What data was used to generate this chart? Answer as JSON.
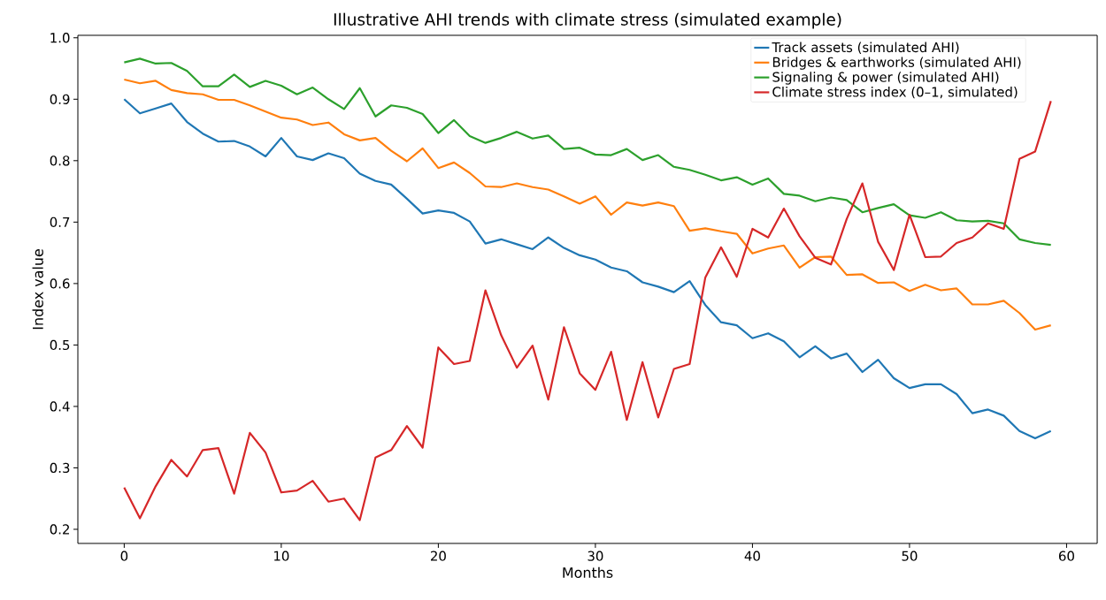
{
  "chart_data": {
    "type": "line",
    "title": "Illustrative AHI trends with climate stress (simulated example)",
    "xlabel": "Months",
    "ylabel": "Index value",
    "x": [
      0,
      1,
      2,
      3,
      4,
      5,
      6,
      7,
      8,
      9,
      10,
      11,
      12,
      13,
      14,
      15,
      16,
      17,
      18,
      19,
      20,
      21,
      22,
      23,
      24,
      25,
      26,
      27,
      28,
      29,
      30,
      31,
      32,
      33,
      34,
      35,
      36,
      37,
      38,
      39,
      40,
      41,
      42,
      43,
      44,
      45,
      46,
      47,
      48,
      49,
      50,
      51,
      52,
      53,
      54,
      55,
      56,
      57,
      58,
      59
    ],
    "series": [
      {
        "name": "Track assets (simulated AHI)",
        "color": "#1f77b4",
        "values": [
          0.9,
          0.877,
          0.885,
          0.893,
          0.863,
          0.844,
          0.831,
          0.832,
          0.823,
          0.807,
          0.837,
          0.807,
          0.801,
          0.812,
          0.804,
          0.779,
          0.767,
          0.761,
          0.738,
          0.714,
          0.719,
          0.715,
          0.701,
          0.665,
          0.672,
          0.664,
          0.656,
          0.675,
          0.658,
          0.646,
          0.639,
          0.626,
          0.62,
          0.602,
          0.595,
          0.586,
          0.604,
          0.565,
          0.537,
          0.532,
          0.511,
          0.519,
          0.506,
          0.48,
          0.498,
          0.478,
          0.486,
          0.456,
          0.476,
          0.446,
          0.43,
          0.436,
          0.436,
          0.42,
          0.389,
          0.395,
          0.385,
          0.36,
          0.348,
          0.36
        ]
      },
      {
        "name": "Bridges & earthworks (simulated AHI)",
        "color": "#ff7f0e",
        "values": [
          0.932,
          0.926,
          0.93,
          0.915,
          0.91,
          0.908,
          0.899,
          0.899,
          0.89,
          0.88,
          0.87,
          0.867,
          0.858,
          0.862,
          0.843,
          0.833,
          0.837,
          0.816,
          0.799,
          0.82,
          0.788,
          0.797,
          0.78,
          0.758,
          0.757,
          0.763,
          0.757,
          0.753,
          0.742,
          0.73,
          0.742,
          0.712,
          0.732,
          0.727,
          0.732,
          0.726,
          0.686,
          0.69,
          0.685,
          0.681,
          0.649,
          0.657,
          0.662,
          0.626,
          0.643,
          0.644,
          0.614,
          0.615,
          0.601,
          0.602,
          0.588,
          0.598,
          0.589,
          0.592,
          0.566,
          0.566,
          0.572,
          0.552,
          0.525,
          0.532
        ]
      },
      {
        "name": "Signaling & power (simulated AHI)",
        "color": "#2ca02c",
        "values": [
          0.96,
          0.966,
          0.958,
          0.959,
          0.946,
          0.921,
          0.921,
          0.94,
          0.92,
          0.93,
          0.922,
          0.908,
          0.919,
          0.9,
          0.884,
          0.918,
          0.872,
          0.89,
          0.886,
          0.876,
          0.845,
          0.866,
          0.84,
          0.829,
          0.837,
          0.847,
          0.836,
          0.841,
          0.819,
          0.821,
          0.81,
          0.809,
          0.819,
          0.801,
          0.809,
          0.79,
          0.785,
          0.777,
          0.768,
          0.773,
          0.761,
          0.771,
          0.746,
          0.743,
          0.734,
          0.74,
          0.736,
          0.716,
          0.723,
          0.729,
          0.711,
          0.707,
          0.716,
          0.703,
          0.701,
          0.702,
          0.698,
          0.672,
          0.666,
          0.663
        ]
      },
      {
        "name": "Climate stress index (0–1, simulated)",
        "color": "#d62728",
        "values": [
          0.268,
          0.218,
          0.27,
          0.313,
          0.286,
          0.329,
          0.332,
          0.258,
          0.357,
          0.325,
          0.26,
          0.263,
          0.279,
          0.245,
          0.25,
          0.215,
          0.317,
          0.329,
          0.368,
          0.333,
          0.496,
          0.469,
          0.474,
          0.589,
          0.516,
          0.463,
          0.499,
          0.411,
          0.529,
          0.454,
          0.427,
          0.489,
          0.378,
          0.472,
          0.382,
          0.461,
          0.469,
          0.61,
          0.659,
          0.611,
          0.689,
          0.675,
          0.722,
          0.677,
          0.642,
          0.631,
          0.705,
          0.763,
          0.668,
          0.622,
          0.712,
          0.643,
          0.644,
          0.666,
          0.675,
          0.698,
          0.689,
          0.803,
          0.815,
          0.897
        ]
      }
    ],
    "xlim": [
      -2.95,
      61.95
    ],
    "ylim": [
      0.177,
      1.004
    ],
    "xticks": [
      0,
      10,
      20,
      30,
      40,
      50,
      60
    ],
    "yticks": [
      0.2,
      0.3,
      0.4,
      0.5,
      0.6,
      0.7,
      0.8,
      0.9,
      {
        "value": 1.0,
        "label": "1.0"
      }
    ],
    "grid": false,
    "legend": "top right"
  }
}
